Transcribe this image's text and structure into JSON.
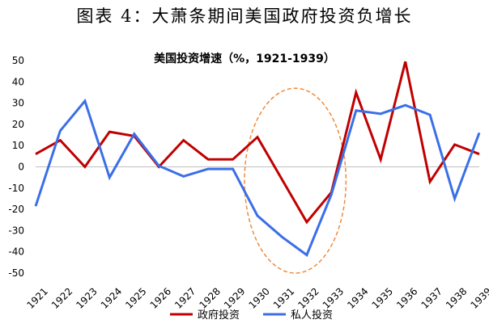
{
  "figure_title": "图表 4：大萧条期间美国政府投资负增长",
  "chart_data": {
    "type": "line",
    "title": "美国投资增速（%，1921-1939）",
    "xlabel": "",
    "ylabel": "",
    "categories": [
      "1921",
      "1922",
      "1923",
      "1924",
      "1925",
      "1926",
      "1927",
      "1928",
      "1929",
      "1930",
      "1931",
      "1932",
      "1933",
      "1934",
      "1935",
      "1936",
      "1937",
      "1938",
      "1939"
    ],
    "x_range": [
      1921,
      1939
    ],
    "ylim": [
      -50,
      50
    ],
    "yticks": [
      -50,
      -40,
      -30,
      -20,
      -10,
      0,
      10,
      20,
      30,
      40,
      50
    ],
    "grid": false,
    "legend_position": "bottom",
    "series": [
      {
        "name": "政府投资",
        "color": "#C00000",
        "points": [
          [
            1921,
            6
          ],
          [
            1922,
            12.5
          ],
          [
            1923,
            0
          ],
          [
            1924,
            16.5
          ],
          [
            1925,
            14.5
          ],
          [
            1926,
            0
          ],
          [
            1927,
            12.5
          ],
          [
            1928,
            3.5
          ],
          [
            1929,
            3.5
          ],
          [
            1930,
            14
          ],
          [
            1932,
            -26
          ],
          [
            1933,
            -12
          ],
          [
            1934,
            35
          ],
          [
            1935,
            3.5
          ],
          [
            1936,
            49.5
          ],
          [
            1937,
            -7
          ],
          [
            1938,
            10.5
          ],
          [
            1939,
            6
          ]
        ]
      },
      {
        "name": "私人投资",
        "color": "#3B6FE8",
        "points": [
          [
            1921,
            -18.5
          ],
          [
            1922,
            17
          ],
          [
            1923,
            31
          ],
          [
            1924,
            -5
          ],
          [
            1925,
            15.5
          ],
          [
            1926,
            0.5
          ],
          [
            1927,
            -4.5
          ],
          [
            1928,
            -1
          ],
          [
            1929,
            -1
          ],
          [
            1930,
            -23
          ],
          [
            1931,
            -33
          ],
          [
            1932,
            -41.5
          ],
          [
            1933,
            -13
          ],
          [
            1934,
            26.5
          ],
          [
            1935,
            25
          ],
          [
            1936,
            29
          ],
          [
            1937,
            24.5
          ],
          [
            1938,
            -15
          ],
          [
            1939,
            16
          ]
        ]
      }
    ],
    "highlight": {
      "shape": "dashed-ellipse",
      "color": "#F08A3A",
      "x_range": [
        1930,
        1933
      ],
      "y_range": [
        -50,
        37
      ]
    }
  }
}
